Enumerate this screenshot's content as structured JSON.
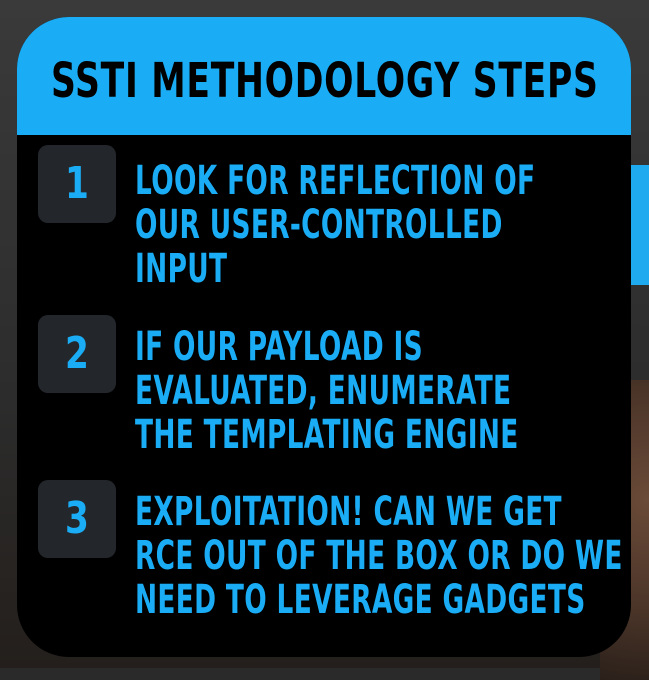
{
  "card": {
    "title": "SSTI METHODOLOGY STEPS",
    "steps": [
      {
        "number": "1",
        "lines": [
          "LOOK FOR REFLECTION OF",
          "OUR USER-CONTROLLED",
          "INPUT"
        ]
      },
      {
        "number": "2",
        "lines": [
          "IF OUR PAYLOAD IS",
          "EVALUATED, ENUMERATE",
          "THE TEMPLATING ENGINE"
        ]
      },
      {
        "number": "3",
        "lines": [
          "EXPLOITATION! CAN WE GET",
          "RCE OUT OF THE BOX OR DO WE",
          "NEED TO LEVERAGE GADGETS"
        ]
      }
    ]
  },
  "colors": {
    "accent": "#1aadf6",
    "card_background": "#000000",
    "badge_background": "#23272c",
    "title_text": "#000000"
  }
}
